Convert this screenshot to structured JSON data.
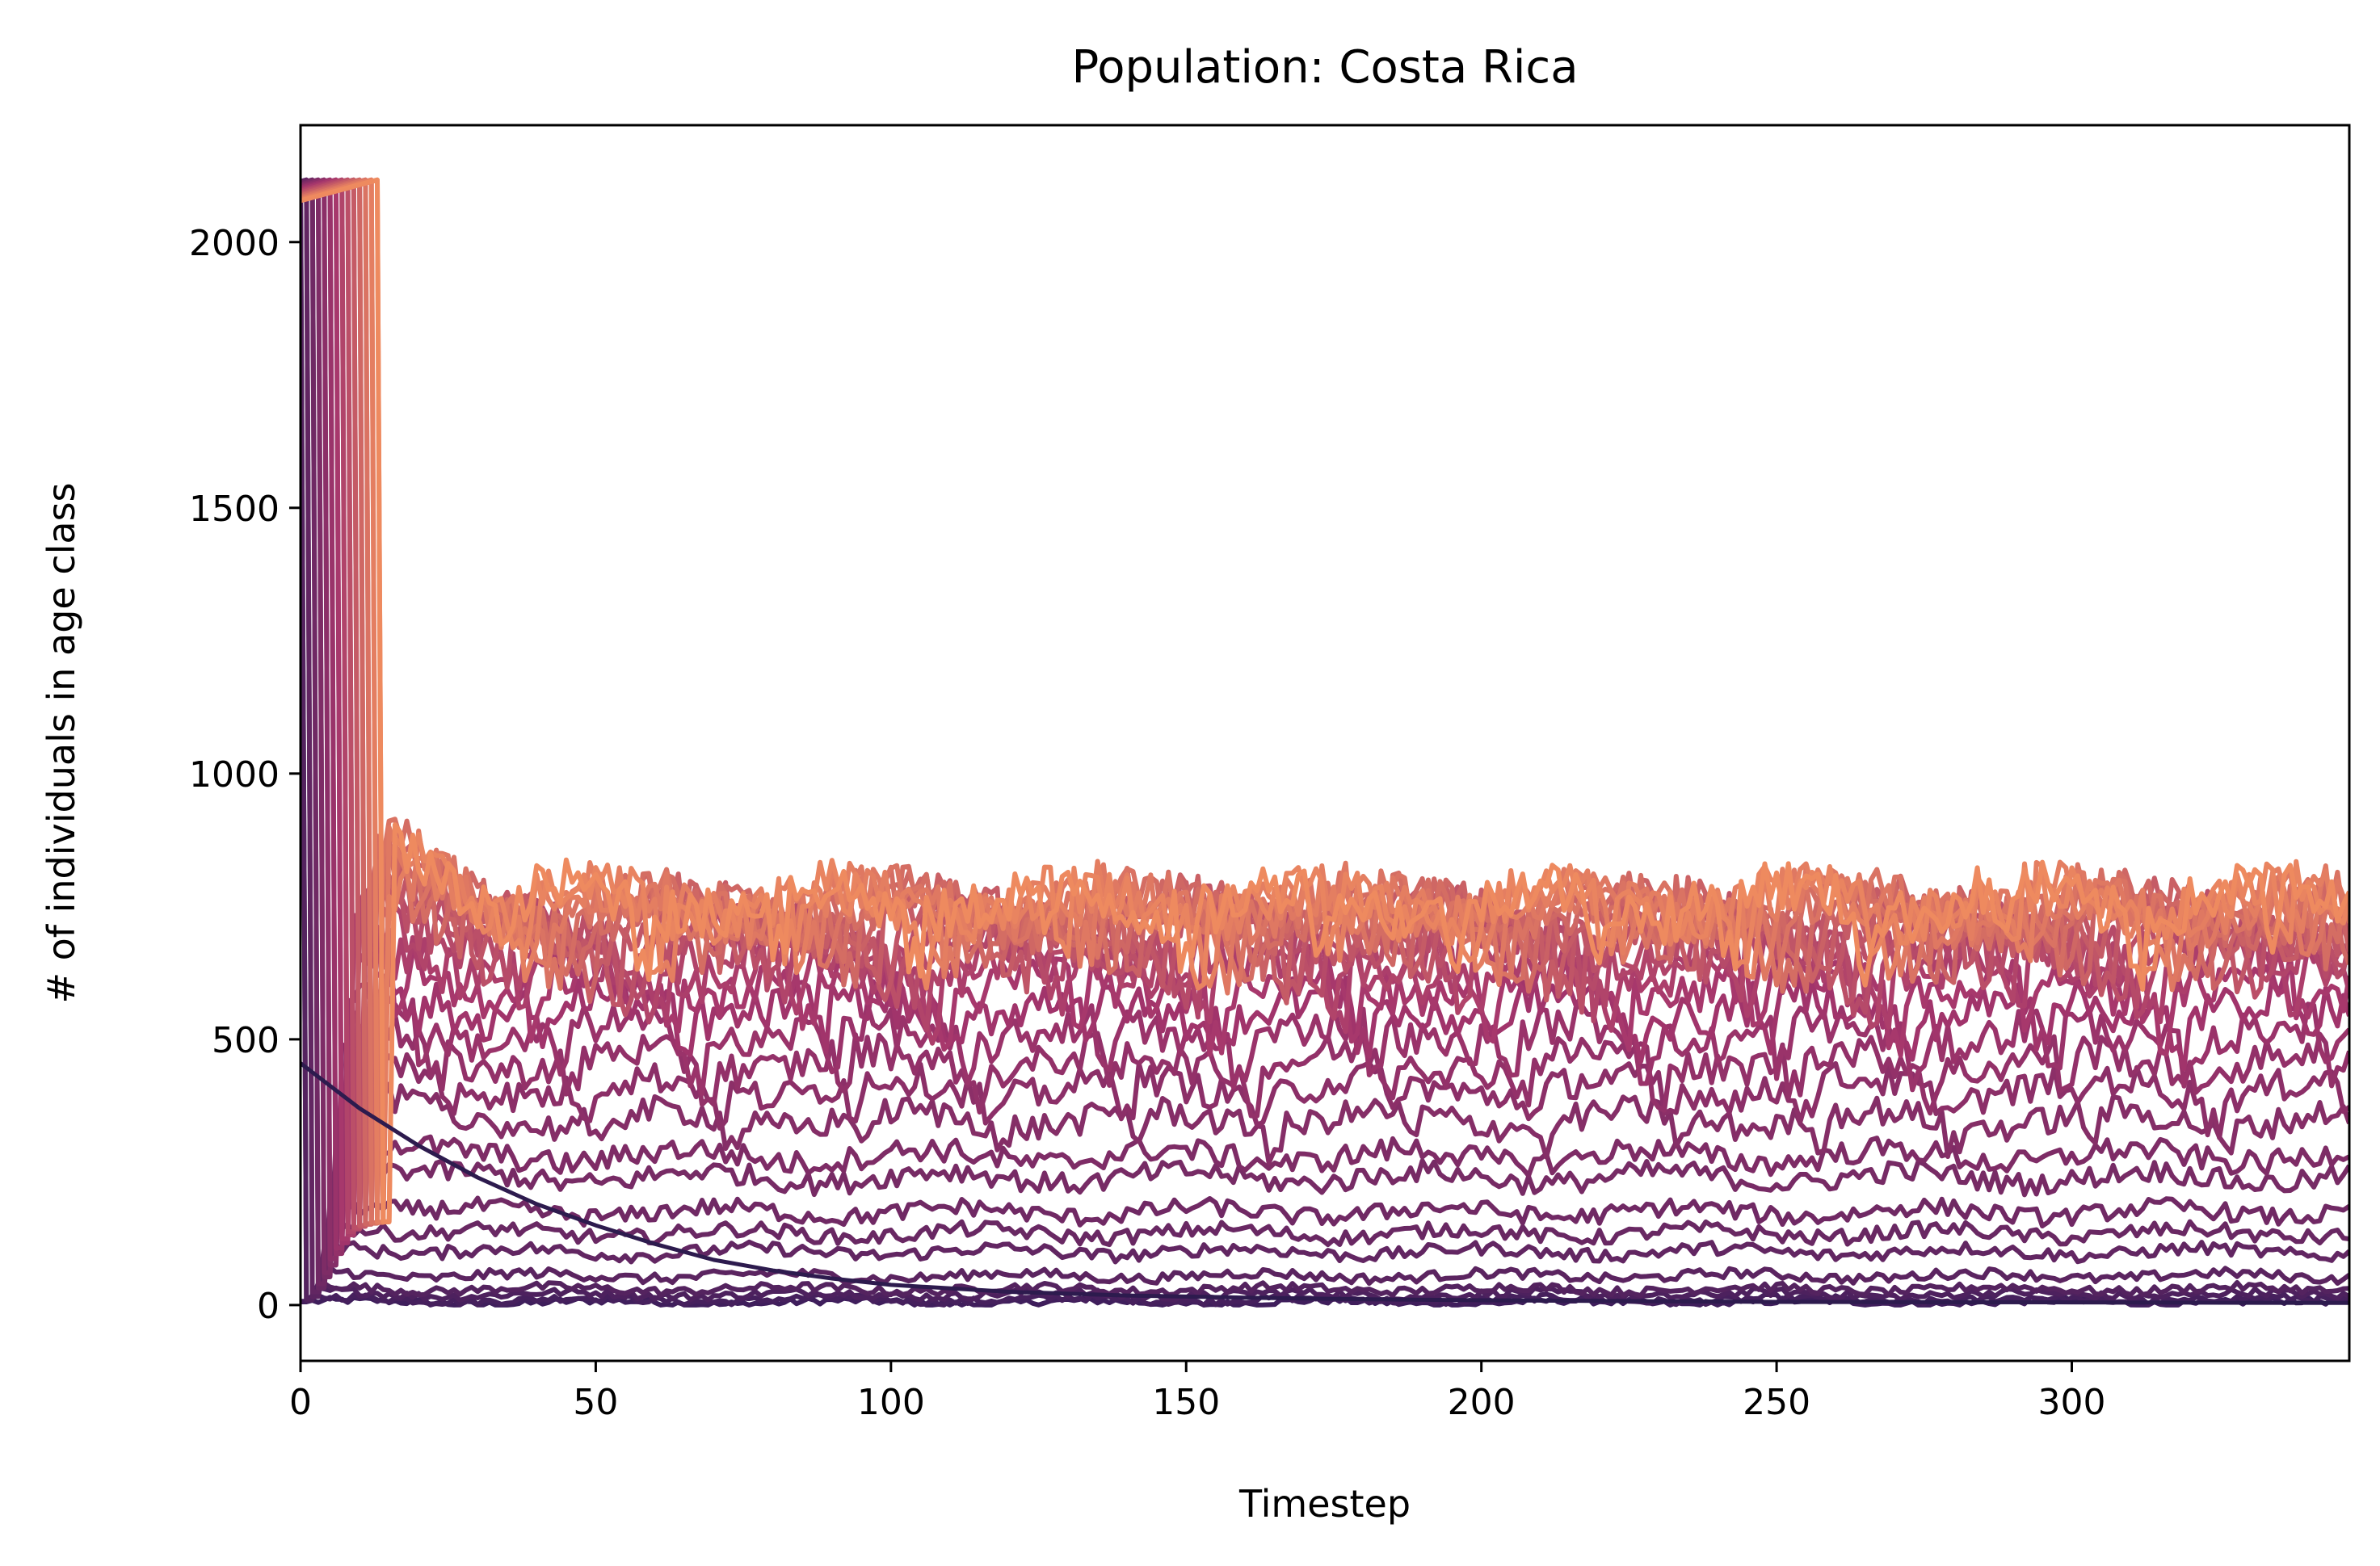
{
  "chart_data": {
    "type": "line",
    "title": "Population: Costa Rica",
    "xlabel": "Timestep",
    "ylabel": "# of individuals in age class",
    "xlim": [
      0,
      347
    ],
    "ylim": [
      -105,
      2220
    ],
    "x_ticks": [
      0,
      50,
      100,
      150,
      200,
      250,
      300
    ],
    "x_tick_labels": [
      "0",
      "50",
      "100",
      "150",
      "200",
      "250",
      "300"
    ],
    "y_ticks": [
      0,
      500,
      1000,
      1500,
      2000
    ],
    "y_tick_labels": [
      "0",
      "500",
      "1000",
      "1500",
      "2000"
    ],
    "grid": false,
    "legend": "none",
    "colormap_dark": "#3f1e5c",
    "colormap_mid": "#a4356c",
    "colormap_light": "#ee8a5f",
    "age_class_series": {
      "count": 30,
      "initial_peak": 2120,
      "collapse_timestep": 16,
      "steady_state_levels": [
        5,
        10,
        20,
        30,
        55,
        100,
        135,
        175,
        240,
        280,
        350,
        410,
        460,
        510,
        560,
        600,
        635,
        665,
        690,
        705,
        715,
        725,
        735,
        740,
        745,
        750,
        752,
        755,
        757,
        760
      ]
    },
    "decay_series": {
      "color": "#2d1b4e",
      "start_value": 455,
      "x": [
        0,
        10,
        20,
        30,
        40,
        50,
        60,
        70,
        80,
        90,
        100,
        120,
        140,
        160,
        180,
        200,
        250,
        300,
        347
      ],
      "values": [
        455,
        370,
        300,
        240,
        190,
        150,
        115,
        85,
        65,
        50,
        38,
        25,
        18,
        14,
        11,
        9,
        6,
        5,
        4
      ]
    }
  }
}
